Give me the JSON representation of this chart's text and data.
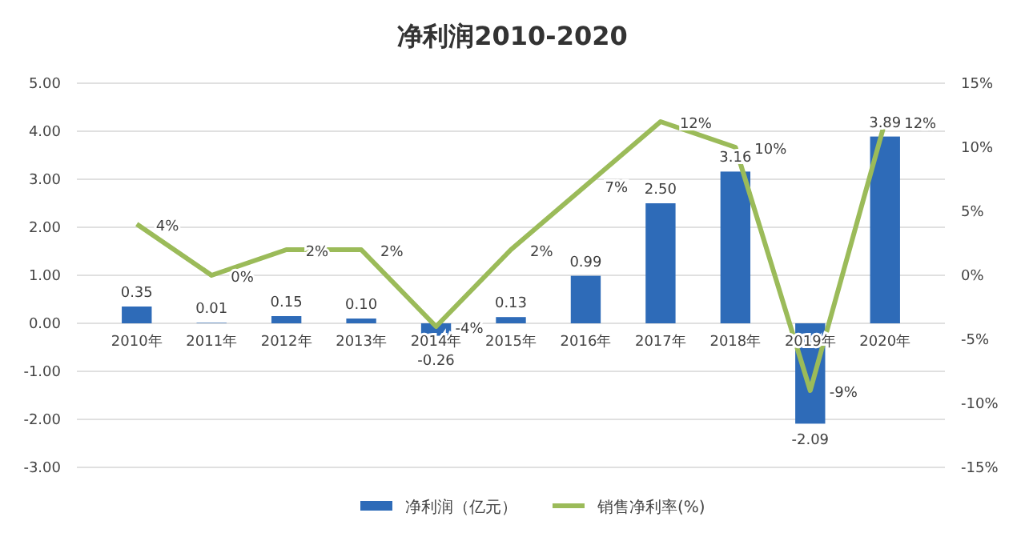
{
  "chart_data": {
    "type": "bar",
    "title": "净利润2010-2020",
    "categories": [
      "2010年",
      "2011年",
      "2012年",
      "2013年",
      "2014年",
      "2015年",
      "2016年",
      "2017年",
      "2018年",
      "2019年",
      "2020年"
    ],
    "series": [
      {
        "name": "净利润（亿元）",
        "color": "#2e6bb8",
        "values": [
          0.35,
          0.01,
          0.15,
          0.1,
          -0.26,
          0.13,
          0.99,
          2.5,
          3.16,
          -2.09,
          3.89
        ],
        "value_labels": [
          "0.35",
          "0.01",
          "0.15",
          "0.10",
          "-0.26",
          "0.13",
          "0.99",
          "2.50",
          "3.16",
          "-2.09",
          "3.89"
        ]
      },
      {
        "name": "销售净利率(%)",
        "type": "line",
        "axis": "y2",
        "color": "#9bbb59",
        "values": [
          4,
          0,
          2,
          2,
          -4,
          2,
          7,
          12,
          10,
          -9,
          12
        ],
        "value_labels": [
          "4%",
          "0%",
          "2%",
          "2%",
          "-4%",
          "2%",
          "7%",
          "12%",
          "10%",
          "-9%",
          "12%"
        ]
      }
    ],
    "ylim": [
      -3,
      5
    ],
    "yticks": [
      {
        "value": -3,
        "label": "-3.00"
      },
      {
        "value": -2,
        "label": "-2.00"
      },
      {
        "value": -1,
        "label": "-1.00"
      },
      {
        "value": 0,
        "label": "0.00"
      },
      {
        "value": 1,
        "label": "1.00"
      },
      {
        "value": 2,
        "label": "2.00"
      },
      {
        "value": 3,
        "label": "3.00"
      },
      {
        "value": 4,
        "label": "4.00"
      },
      {
        "value": 5,
        "label": "5.00"
      }
    ],
    "y2lim": [
      -15,
      15
    ],
    "y2ticks": [
      {
        "value": -15,
        "label": "-15%"
      },
      {
        "value": -10,
        "label": "-10%"
      },
      {
        "value": -5,
        "label": "-5%"
      },
      {
        "value": 0,
        "label": "0%"
      },
      {
        "value": 5,
        "label": "5%"
      },
      {
        "value": 10,
        "label": "10%"
      },
      {
        "value": 15,
        "label": "15%"
      }
    ],
    "grid": "y",
    "legend": "bottom",
    "marker": "none",
    "line_style": "solid"
  }
}
